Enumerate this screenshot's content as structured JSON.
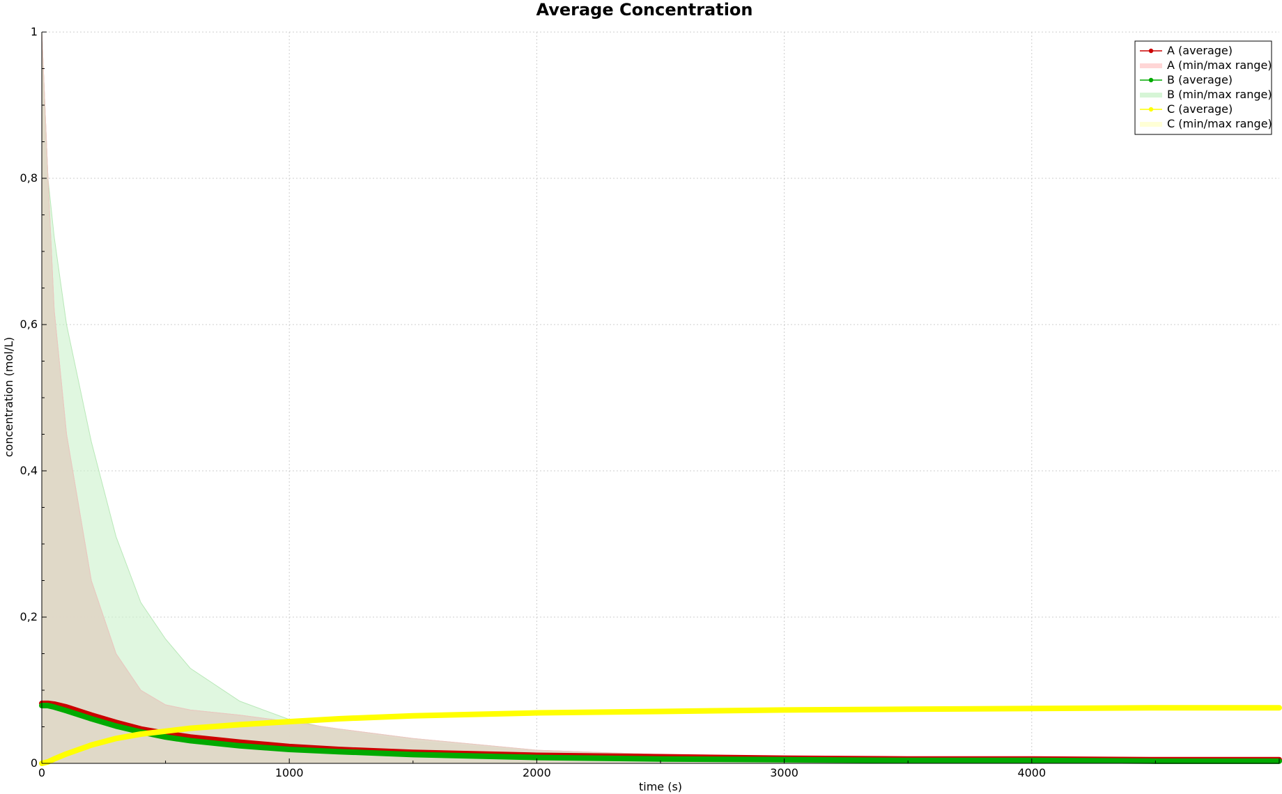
{
  "chart_data": {
    "type": "line",
    "title": "Average Concentration",
    "xlabel": "time (s)",
    "ylabel": "concentration (mol/L)",
    "xlim": [
      0,
      5000
    ],
    "ylim": [
      0,
      1
    ],
    "x_ticks": [
      0,
      1000,
      2000,
      3000,
      4000
    ],
    "x_tick_labels": [
      "0",
      "1000",
      "2000",
      "3000",
      "4000"
    ],
    "y_ticks": [
      0,
      0.2,
      0.4,
      0.6,
      0.8,
      1
    ],
    "y_tick_labels": [
      "0",
      "0,2",
      "0,4",
      "0,6",
      "0,8",
      "1"
    ],
    "grid": true,
    "legend_position": "top-right",
    "colors": {
      "A_line": "#cc0000",
      "A_range": "#ffcccc",
      "B_line": "#00aa00",
      "B_range": "#ccf2cc",
      "C_line": "#ffff00",
      "C_range": "#ffffcc",
      "overlap": "#ddd8c6"
    },
    "legend": [
      {
        "label": "A (average)",
        "kind": "line",
        "color": "#cc0000"
      },
      {
        "label": "A (min/max range)",
        "kind": "band",
        "color": "#ffcccc"
      },
      {
        "label": "B (average)",
        "kind": "line",
        "color": "#00aa00"
      },
      {
        "label": "B (min/max range)",
        "kind": "band",
        "color": "#ccf2cc"
      },
      {
        "label": "C (average)",
        "kind": "line",
        "color": "#ffff00"
      },
      {
        "label": "C (min/max range)",
        "kind": "band",
        "color": "#ffffcc"
      }
    ],
    "x": [
      0,
      25,
      50,
      100,
      200,
      300,
      400,
      500,
      600,
      800,
      1000,
      1200,
      1500,
      2000,
      2500,
      3000,
      3500,
      4000,
      4500,
      5000
    ],
    "series": [
      {
        "name": "A (average)",
        "values": [
          0.082,
          0.082,
          0.081,
          0.077,
          0.066,
          0.056,
          0.047,
          0.041,
          0.036,
          0.029,
          0.023,
          0.019,
          0.015,
          0.011,
          0.009,
          0.007,
          0.006,
          0.006,
          0.005,
          0.005
        ]
      },
      {
        "name": "A (min/max range)",
        "lower": [
          0,
          0,
          0,
          0,
          0,
          0,
          0,
          0,
          0,
          0,
          0,
          0,
          0,
          0,
          0,
          0,
          0,
          0,
          0,
          0
        ],
        "upper": [
          1.0,
          0.8,
          0.62,
          0.45,
          0.25,
          0.15,
          0.1,
          0.08,
          0.073,
          0.066,
          0.057,
          0.047,
          0.034,
          0.018,
          0.012,
          0.009,
          0.007,
          0.006,
          0.005,
          0.005
        ]
      },
      {
        "name": "B (average)",
        "values": [
          0.079,
          0.079,
          0.077,
          0.072,
          0.061,
          0.051,
          0.043,
          0.036,
          0.031,
          0.024,
          0.019,
          0.016,
          0.012,
          0.008,
          0.006,
          0.005,
          0.004,
          0.004,
          0.003,
          0.003
        ]
      },
      {
        "name": "B (min/max range)",
        "lower": [
          0,
          0,
          0,
          0,
          0,
          0,
          0,
          0,
          0,
          0,
          0,
          0,
          0,
          0,
          0,
          0,
          0,
          0,
          0,
          0
        ],
        "upper": [
          1.0,
          0.8,
          0.72,
          0.6,
          0.44,
          0.31,
          0.22,
          0.17,
          0.13,
          0.085,
          0.06,
          0.045,
          0.03,
          0.016,
          0.01,
          0.007,
          0.006,
          0.005,
          0.004,
          0.004
        ]
      },
      {
        "name": "C (average)",
        "values": [
          0.0,
          0.002,
          0.006,
          0.013,
          0.025,
          0.034,
          0.04,
          0.044,
          0.048,
          0.053,
          0.057,
          0.061,
          0.065,
          0.069,
          0.071,
          0.073,
          0.074,
          0.075,
          0.076,
          0.076
        ]
      },
      {
        "name": "C (min/max range)",
        "lower": [
          0.0,
          0.002,
          0.006,
          0.013,
          0.025,
          0.034,
          0.04,
          0.044,
          0.048,
          0.053,
          0.057,
          0.061,
          0.065,
          0.069,
          0.071,
          0.073,
          0.074,
          0.075,
          0.076,
          0.076
        ],
        "upper": [
          0.0,
          0.002,
          0.006,
          0.013,
          0.025,
          0.034,
          0.04,
          0.044,
          0.048,
          0.053,
          0.057,
          0.061,
          0.065,
          0.069,
          0.071,
          0.073,
          0.074,
          0.075,
          0.076,
          0.076
        ]
      }
    ]
  }
}
